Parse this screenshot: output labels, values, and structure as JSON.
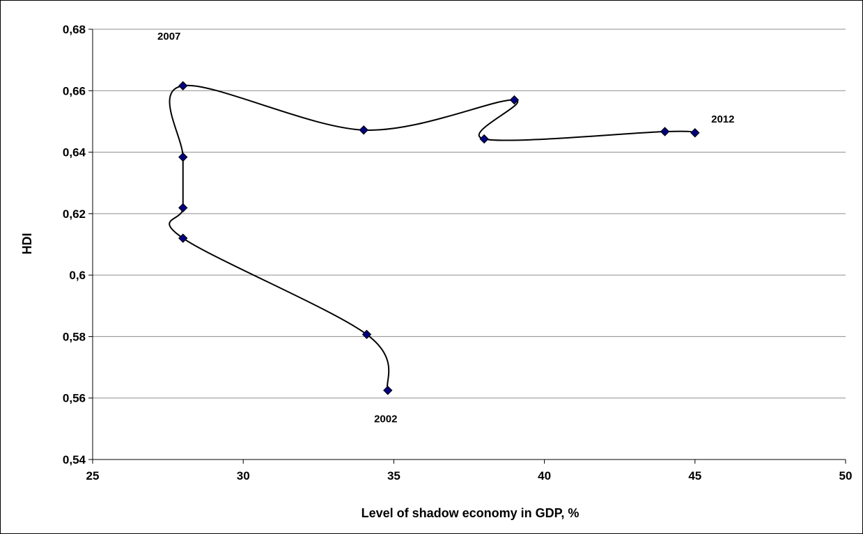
{
  "chart_data": {
    "type": "line",
    "xlabel": "Level of shadow economy in GDP, %",
    "ylabel": "HDI",
    "xlim": [
      25,
      50
    ],
    "ylim": [
      0.54,
      0.68
    ],
    "x_ticks": [
      25,
      30,
      35,
      40,
      45,
      50
    ],
    "x_tick_labels": [
      "25",
      "30",
      "35",
      "40",
      "45",
      "50"
    ],
    "y_ticks": [
      0.54,
      0.56,
      0.58,
      0.6,
      0.62,
      0.64,
      0.66,
      0.68
    ],
    "y_tick_labels": [
      "0,54",
      "0,56",
      "0,58",
      "0,6",
      "0,62",
      "0,64",
      "0,66",
      "0,68"
    ],
    "grid": {
      "horizontal": true,
      "vertical": false
    },
    "smoothed": true,
    "series": [
      {
        "color": "#000080",
        "line_color": "#000000",
        "marker": "diamond",
        "points": [
          {
            "x": 34.8,
            "y": 0.5625
          },
          {
            "x": 34.1,
            "y": 0.5807
          },
          {
            "x": 28.0,
            "y": 0.612
          },
          {
            "x": 28.0,
            "y": 0.6219
          },
          {
            "x": 28.0,
            "y": 0.6384
          },
          {
            "x": 28.0,
            "y": 0.6616
          },
          {
            "x": 34.0,
            "y": 0.6472
          },
          {
            "x": 39.0,
            "y": 0.657
          },
          {
            "x": 38.0,
            "y": 0.6443
          },
          {
            "x": 44.0,
            "y": 0.6467
          },
          {
            "x": 45.0,
            "y": 0.6463
          }
        ]
      }
    ],
    "annotations": [
      {
        "text": "2002",
        "x": 34.8,
        "y": 0.5625
      },
      {
        "text": "2007",
        "x": 28.0,
        "y": 0.6616
      },
      {
        "text": "2012",
        "x": 45.0,
        "y": 0.6463
      }
    ]
  }
}
